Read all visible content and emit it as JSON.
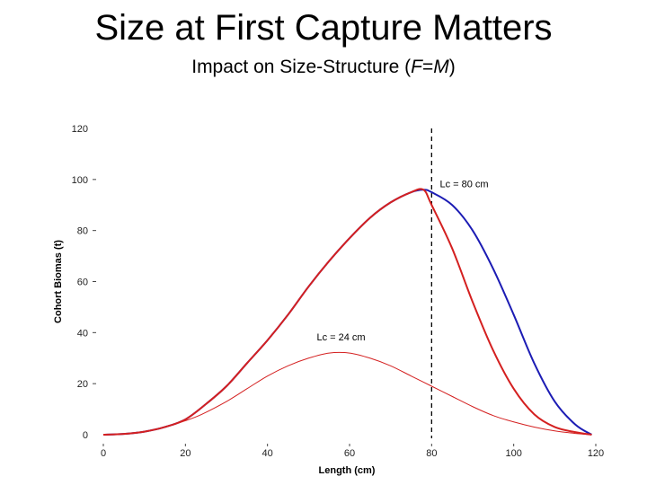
{
  "header": {
    "title": "Size at First Capture Matters",
    "subtitle_prefix": "Impact on Size-Structure (",
    "subtitle_f": "F",
    "subtitle_eq": "=",
    "subtitle_m": "M",
    "subtitle_suffix": ")"
  },
  "chart_data": {
    "type": "line",
    "title": "Size at First Capture Matters",
    "subtitle": "Impact on Size-Structure (F=M)",
    "xlabel": "Length (cm)",
    "ylabel": "Cohort Biomas (t)",
    "xlim": [
      0,
      120
    ],
    "ylim": [
      0,
      120
    ],
    "x_ticks": [
      0,
      20,
      40,
      60,
      80,
      100,
      120
    ],
    "y_ticks": [
      0,
      20,
      40,
      60,
      80,
      100,
      120
    ],
    "x_tick_labels": [
      "0",
      "20",
      "40",
      "60",
      "80",
      "100",
      "120"
    ],
    "y_tick_labels": [
      "0",
      "20",
      "40",
      "60",
      "80",
      "100",
      "120"
    ],
    "grid": false,
    "vline": {
      "x": 80,
      "style": "dashed",
      "color": "#000000"
    },
    "annotations": [
      {
        "text": "Lc = 80 cm",
        "x": 82,
        "y": 97
      },
      {
        "text": "Lc = 24 cm",
        "x": 52,
        "y": 37
      }
    ],
    "series": [
      {
        "color": "#1c1cb4",
        "x": [
          0,
          5,
          10,
          15,
          20,
          25,
          30,
          35,
          40,
          45,
          50,
          55,
          60,
          65,
          70,
          75,
          78,
          80,
          85,
          90,
          95,
          100,
          105,
          110,
          115,
          119
        ],
        "y": [
          0,
          0.3,
          1.2,
          3,
          6,
          12,
          19,
          28,
          37,
          47,
          58,
          68,
          77,
          85,
          91,
          95,
          96,
          95,
          90,
          80,
          65,
          47,
          28,
          13,
          4,
          0
        ]
      },
      {
        "color": "#d42020",
        "x": [
          0,
          5,
          10,
          15,
          20,
          25,
          30,
          35,
          40,
          45,
          50,
          55,
          60,
          65,
          70,
          75,
          78,
          80,
          85,
          90,
          95,
          100,
          105,
          110,
          115,
          119
        ],
        "y": [
          0,
          0.3,
          1.2,
          3,
          6,
          12,
          19,
          28,
          37,
          47,
          58,
          68,
          77,
          85,
          91,
          95,
          96,
          90,
          73,
          52,
          33,
          18,
          8,
          3,
          1,
          0
        ]
      },
      {
        "color": "#d42020",
        "x": [
          0,
          5,
          10,
          15,
          20,
          24,
          30,
          35,
          40,
          45,
          50,
          55,
          60,
          65,
          70,
          75,
          80,
          85,
          90,
          95,
          100,
          105,
          110,
          115,
          119
        ],
        "y": [
          0,
          0.3,
          1.2,
          3,
          5.5,
          8,
          13,
          18,
          23,
          27,
          30,
          32,
          32,
          30,
          27,
          23,
          19,
          15,
          11,
          7.5,
          5,
          3,
          1.5,
          0.5,
          0
        ]
      }
    ]
  }
}
